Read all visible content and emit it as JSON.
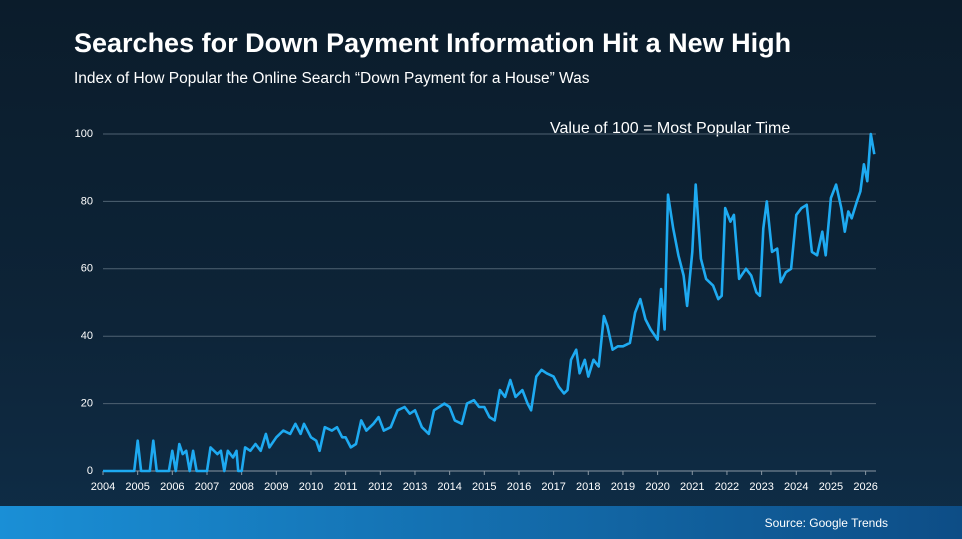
{
  "chart_data": {
    "type": "line",
    "title": "Searches for Down Payment Information Hit a New High",
    "subtitle": "Index of How Popular the Online Search “Down Payment for a House” Was",
    "annotation": "Value of 100 = Most Popular Time",
    "source": "Source: Google Trends",
    "color": "#1eaaf1",
    "grid": true,
    "xlim": [
      2004,
      2026.3
    ],
    "xticks": [
      2004,
      2005,
      2006,
      2007,
      2008,
      2009,
      2010,
      2011,
      2012,
      2013,
      2014,
      2015,
      2016,
      2017,
      2018,
      2019,
      2020,
      2021,
      2022,
      2023,
      2024,
      2025,
      2026
    ],
    "ylim": [
      0,
      100
    ],
    "yticks": [
      0,
      20,
      40,
      60,
      80,
      100
    ],
    "x": [
      2004.0,
      2004.5,
      2004.9,
      2005.0,
      2005.1,
      2005.35,
      2005.45,
      2005.55,
      2005.9,
      2006.0,
      2006.1,
      2006.2,
      2006.3,
      2006.4,
      2006.5,
      2006.6,
      2006.7,
      2007.0,
      2007.1,
      2007.3,
      2007.4,
      2007.5,
      2007.6,
      2007.75,
      2007.85,
      2007.9,
      2008.0,
      2008.1,
      2008.25,
      2008.4,
      2008.55,
      2008.7,
      2008.8,
      2009.0,
      2009.2,
      2009.4,
      2009.55,
      2009.7,
      2009.8,
      2010.0,
      2010.15,
      2010.25,
      2010.4,
      2010.6,
      2010.75,
      2010.9,
      2011.0,
      2011.15,
      2011.3,
      2011.45,
      2011.6,
      2011.8,
      2011.95,
      2012.1,
      2012.3,
      2012.5,
      2012.7,
      2012.85,
      2013.0,
      2013.2,
      2013.4,
      2013.55,
      2013.7,
      2013.85,
      2014.0,
      2014.15,
      2014.35,
      2014.5,
      2014.7,
      2014.85,
      2015.0,
      2015.15,
      2015.3,
      2015.45,
      2015.6,
      2015.75,
      2015.9,
      2016.1,
      2016.25,
      2016.35,
      2016.5,
      2016.65,
      2016.8,
      2017.0,
      2017.15,
      2017.3,
      2017.4,
      2017.5,
      2017.65,
      2017.75,
      2017.9,
      2018.0,
      2018.15,
      2018.3,
      2018.45,
      2018.55,
      2018.7,
      2018.85,
      2019.0,
      2019.2,
      2019.35,
      2019.5,
      2019.65,
      2019.8,
      2020.0,
      2020.1,
      2020.2,
      2020.3,
      2020.45,
      2020.6,
      2020.75,
      2020.85,
      2021.0,
      2021.1,
      2021.25,
      2021.4,
      2021.6,
      2021.75,
      2021.85,
      2021.95,
      2022.1,
      2022.2,
      2022.35,
      2022.55,
      2022.7,
      2022.85,
      2022.95,
      2023.05,
      2023.15,
      2023.3,
      2023.45,
      2023.55,
      2023.7,
      2023.85,
      2024.0,
      2024.15,
      2024.3,
      2024.45,
      2024.6,
      2024.75,
      2024.85,
      2025.0,
      2025.15,
      2025.3,
      2025.4,
      2025.5,
      2025.6,
      2025.75,
      2025.85,
      2025.95,
      2026.05,
      2026.15,
      2026.25
    ],
    "values": [
      0,
      0,
      0,
      9,
      0,
      0,
      9,
      0,
      0,
      6,
      0,
      8,
      5,
      6,
      0,
      6,
      0,
      0,
      7,
      5,
      6,
      0,
      6,
      4,
      6,
      0,
      0,
      7,
      6,
      8,
      6,
      11,
      7,
      10,
      12,
      11,
      14,
      11,
      14,
      10,
      9,
      6,
      13,
      12,
      13,
      10,
      10,
      7,
      8,
      15,
      12,
      14,
      16,
      12,
      13,
      18,
      19,
      17,
      18,
      13,
      11,
      18,
      19,
      20,
      19,
      15,
      14,
      20,
      21,
      19,
      19,
      16,
      15,
      24,
      22,
      27,
      22,
      24,
      20,
      18,
      28,
      30,
      29,
      28,
      25,
      23,
      24,
      33,
      36,
      29,
      33,
      28,
      33,
      31,
      46,
      43,
      36,
      37,
      37,
      38,
      47,
      51,
      45,
      42,
      39,
      54,
      42,
      82,
      72,
      64,
      58,
      49,
      65,
      85,
      63,
      57,
      55,
      51,
      52,
      78,
      74,
      76,
      57,
      60,
      58,
      53,
      52,
      72,
      80,
      65,
      66,
      56,
      59,
      60,
      76,
      78,
      79,
      65,
      64,
      71,
      64,
      81,
      85,
      78,
      71,
      77,
      75,
      80,
      83,
      91,
      86,
      100,
      94
    ]
  }
}
